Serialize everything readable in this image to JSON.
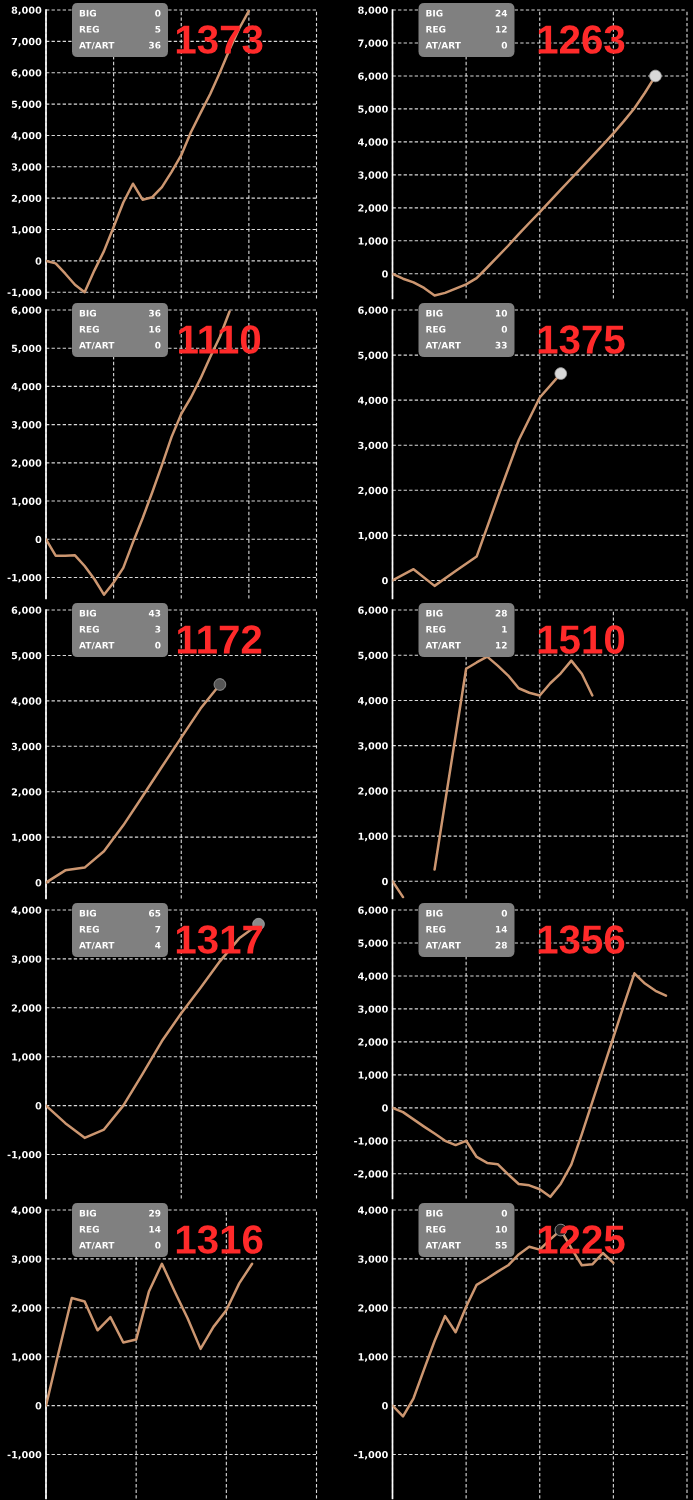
{
  "chart_data": [
    {
      "type": "line",
      "title": "1373",
      "annotations": [
        "BIG",
        "0",
        "REG",
        "5",
        "AT/ART",
        "36"
      ],
      "categories": [
        null,
        null,
        null,
        null,
        null,
        null,
        null,
        null,
        null,
        null,
        null,
        null,
        null,
        null,
        null,
        null,
        null,
        null,
        null,
        null,
        null,
        null,
        null,
        null,
        null,
        null,
        null,
        null,
        null
      ],
      "series": [
        {
          "color": "#cc9670",
          "values": [
            0,
            -80,
            -410,
            -760,
            -1000,
            -310,
            310,
            1080,
            1860,
            2460,
            1950,
            2030,
            2350,
            2840,
            3370,
            4100,
            4720,
            5320,
            6010,
            6740,
            7410,
            7970,
            null,
            null,
            null,
            null,
            null,
            null,
            null
          ]
        }
      ],
      "ylim": [
        -1200,
        8000
      ],
      "yticks": [
        {
          "value": -1000,
          "label": "-1,000"
        },
        0,
        {
          "value": 1000,
          "label": "1,000"
        },
        {
          "value": 2000,
          "label": "2,000"
        },
        {
          "value": 3000,
          "label": "3,000"
        },
        {
          "value": 4000,
          "label": "4,000"
        },
        {
          "value": 5000,
          "label": "5,000"
        },
        {
          "value": 6000,
          "label": "6,000"
        },
        {
          "value": 7000,
          "label": "7,000"
        },
        {
          "value": 8000,
          "label": "8,000"
        }
      ],
      "grid": true,
      "tick_labels": "y"
    },
    {
      "type": "line",
      "title": "1263",
      "annotations": [
        "BIG",
        "24",
        "REG",
        "12",
        "AT/ART",
        "0"
      ],
      "categories": [
        null,
        null,
        null,
        null,
        null,
        null,
        null,
        null,
        null,
        null,
        null,
        null,
        null,
        null,
        null,
        null,
        null,
        null,
        null,
        null,
        null,
        null,
        null,
        null,
        null,
        null,
        null,
        null,
        null
      ],
      "series": [
        {
          "color": "#cc9670",
          "values": [
            0,
            -150,
            -260,
            -430,
            -660,
            -580,
            -450,
            -320,
            -130,
            190,
            520,
            850,
            1200,
            1540,
            1870,
            2210,
            2550,
            2890,
            3230,
            3570,
            3910,
            4260,
            4630,
            5020,
            5490,
            6000,
            null,
            null,
            null
          ]
        },
        {
          "type": "scatter",
          "color": "#d8d8d8",
          "values": [
            null,
            null,
            null,
            null,
            null,
            null,
            null,
            null,
            null,
            null,
            null,
            null,
            null,
            null,
            null,
            null,
            null,
            null,
            null,
            null,
            null,
            null,
            null,
            null,
            null,
            6000,
            null,
            null,
            null
          ]
        }
      ],
      "ylim": [
        -750,
        8000
      ],
      "yticks": [
        0,
        {
          "value": 1000,
          "label": "1,000"
        },
        {
          "value": 2000,
          "label": "2,000"
        },
        {
          "value": 3000,
          "label": "3,000"
        },
        {
          "value": 4000,
          "label": "4,000"
        },
        {
          "value": 5000,
          "label": "5,000"
        },
        {
          "value": 6000,
          "label": "6,000"
        },
        {
          "value": 7000,
          "label": "7,000"
        },
        {
          "value": 8000,
          "label": "8,000"
        }
      ],
      "grid": true,
      "tick_labels": "y"
    },
    {
      "type": "line",
      "title": "1110",
      "annotations": [
        "BIG",
        "36",
        "REG",
        "16",
        "AT/ART",
        "0"
      ],
      "categories": [
        null,
        null,
        null,
        null,
        null,
        null,
        null,
        null,
        null,
        null,
        null,
        null,
        null,
        null,
        null,
        null,
        null,
        null,
        null,
        null,
        null,
        null,
        null,
        null,
        null,
        null,
        null,
        null,
        null
      ],
      "series": [
        {
          "color": "#cc9670",
          "values": [
            0,
            -430,
            -430,
            -420,
            -700,
            -1040,
            -1450,
            -1130,
            -750,
            -80,
            550,
            1230,
            1940,
            2680,
            3280,
            3710,
            4210,
            4770,
            5300,
            5960,
            null,
            null,
            null,
            null,
            null,
            null,
            null,
            null,
            null
          ]
        }
      ],
      "ylim": [
        -1550,
        6000
      ],
      "yticks": [
        {
          "value": -1000,
          "label": "-1,000"
        },
        0,
        {
          "value": 1000,
          "label": "1,000"
        },
        {
          "value": 2000,
          "label": "2,000"
        },
        {
          "value": 3000,
          "label": "3,000"
        },
        {
          "value": 4000,
          "label": "4,000"
        },
        {
          "value": 5000,
          "label": "5,000"
        },
        {
          "value": 6000,
          "label": "6,000"
        }
      ],
      "grid": true,
      "tick_labels": "y"
    },
    {
      "type": "line",
      "title": "1375",
      "annotations": [
        "BIG",
        "10",
        "REG",
        "0",
        "AT/ART",
        "33"
      ],
      "categories": [
        null,
        null,
        null,
        null,
        null,
        null,
        null,
        null,
        null,
        null,
        null,
        null,
        null,
        null,
        null
      ],
      "series": [
        {
          "color": "#cc9670",
          "values": [
            0,
            250,
            -120,
            210,
            530,
            1840,
            3110,
            4060,
            4590,
            null,
            null,
            null,
            null,
            null,
            null
          ]
        },
        {
          "type": "scatter",
          "color": "#d8d8d8",
          "values": [
            null,
            null,
            null,
            null,
            null,
            null,
            null,
            null,
            4590,
            null,
            null,
            null,
            null,
            null,
            null
          ]
        }
      ],
      "ylim": [
        -400,
        6000
      ],
      "yticks": [
        0,
        {
          "value": 1000,
          "label": "1,000"
        },
        {
          "value": 2000,
          "label": "2,000"
        },
        {
          "value": 3000,
          "label": "3,000"
        },
        {
          "value": 4000,
          "label": "4,000"
        },
        {
          "value": 5000,
          "label": "5,000"
        },
        {
          "value": 6000,
          "label": "6,000"
        }
      ],
      "grid": true,
      "tick_labels": "y"
    },
    {
      "type": "line",
      "title": "1172",
      "annotations": [
        "BIG",
        "43",
        "REG",
        "3",
        "AT/ART",
        "0"
      ],
      "categories": [
        null,
        null,
        null,
        null,
        null,
        null,
        null,
        null,
        null,
        null,
        null,
        null,
        null,
        null,
        null
      ],
      "series": [
        {
          "color": "#cc9670",
          "values": [
            0,
            270,
            330,
            690,
            1260,
            1900,
            2550,
            3190,
            3830,
            4360,
            null,
            null,
            null,
            null,
            null
          ]
        },
        {
          "type": "scatter",
          "color": "#555555",
          "values": [
            null,
            null,
            null,
            null,
            null,
            null,
            null,
            null,
            null,
            4360,
            null,
            null,
            null,
            null,
            null
          ]
        }
      ],
      "ylim": [
        -350,
        6000
      ],
      "yticks": [
        0,
        {
          "value": 1000,
          "label": "1,000"
        },
        {
          "value": 2000,
          "label": "2,000"
        },
        {
          "value": 3000,
          "label": "3,000"
        },
        {
          "value": 4000,
          "label": "4,000"
        },
        {
          "value": 5000,
          "label": "5,000"
        },
        {
          "value": 6000,
          "label": "6,000"
        }
      ],
      "grid": true,
      "tick_labels": "y"
    },
    {
      "type": "line",
      "title": "1510",
      "annotations": [
        "BIG",
        "28",
        "REG",
        "1",
        "AT/ART",
        "12"
      ],
      "categories": [
        null,
        null,
        null,
        null,
        null,
        null,
        null,
        null,
        null,
        null,
        null,
        null,
        null,
        null,
        null,
        null,
        null,
        null,
        null,
        null,
        null,
        null,
        null,
        null,
        null,
        null,
        null,
        null,
        null
      ],
      "series": [
        {
          "color": "#cc9670",
          "values": [
            0,
            -350,
            null,
            null,
            260,
            1750,
            3220,
            4700,
            4840,
            4970,
            4770,
            4550,
            4270,
            4170,
            4110,
            4380,
            4600,
            4880,
            4590,
            4110,
            null,
            null,
            null,
            null,
            null,
            null,
            null,
            null,
            null
          ]
        }
      ],
      "ylim": [
        -380,
        6000
      ],
      "yticks": [
        0,
        {
          "value": 1000,
          "label": "1,000"
        },
        {
          "value": 2000,
          "label": "2,000"
        },
        {
          "value": 3000,
          "label": "3,000"
        },
        {
          "value": 4000,
          "label": "4,000"
        },
        {
          "value": 5000,
          "label": "5,000"
        },
        {
          "value": 6000,
          "label": "6,000"
        }
      ],
      "grid": true,
      "tick_labels": "y"
    },
    {
      "type": "line",
      "title": "1317",
      "annotations": [
        "BIG",
        "65",
        "REG",
        "7",
        "AT/ART",
        "4"
      ],
      "categories": [
        null,
        null,
        null,
        null,
        null,
        null,
        null,
        null,
        null,
        null,
        null,
        null,
        null,
        null,
        null
      ],
      "series": [
        {
          "color": "#cc9670",
          "values": [
            0,
            -360,
            -660,
            -490,
            0,
            650,
            1320,
            1890,
            2410,
            2950,
            3420,
            3710,
            null,
            null,
            null
          ]
        },
        {
          "type": "scatter",
          "color": "#8a8a8a",
          "values": [
            null,
            null,
            null,
            null,
            null,
            null,
            null,
            null,
            null,
            null,
            null,
            3710,
            null,
            null,
            null
          ]
        }
      ],
      "ylim": [
        -1900,
        4000
      ],
      "yticks": [
        {
          "value": -1000,
          "label": "-1,000"
        },
        0,
        {
          "value": 1000,
          "label": "1,000"
        },
        {
          "value": 2000,
          "label": "2,000"
        },
        {
          "value": 3000,
          "label": "3,000"
        },
        {
          "value": 4000,
          "label": "4,000"
        }
      ],
      "grid": true,
      "tick_labels": "y"
    },
    {
      "type": "line",
      "title": "1356",
      "annotations": [
        "BIG",
        "0",
        "REG",
        "14",
        "AT/ART",
        "28"
      ],
      "categories": [
        null,
        null,
        null,
        null,
        null,
        null,
        null,
        null,
        null,
        null,
        null,
        null,
        null,
        null,
        null,
        null,
        null,
        null,
        null,
        null,
        null,
        null,
        null,
        null,
        null,
        null,
        null,
        null,
        null
      ],
      "series": [
        {
          "color": "#cc9670",
          "values": [
            0,
            -130,
            -350,
            -570,
            -780,
            -1000,
            -1130,
            -1000,
            -1490,
            -1670,
            -1710,
            -2020,
            -2310,
            -2350,
            -2470,
            -2700,
            -2300,
            -1720,
            -800,
            180,
            1160,
            2140,
            3120,
            4080,
            3770,
            3550,
            3400,
            null,
            null
          ]
        }
      ],
      "ylim": [
        -2750,
        6000
      ],
      "yticks": [
        {
          "value": -2000,
          "label": "-2,000"
        },
        {
          "value": -1000,
          "label": "-1,000"
        },
        0,
        {
          "value": 1000,
          "label": "1,000"
        },
        {
          "value": 2000,
          "label": "2,000"
        },
        {
          "value": 3000,
          "label": "3,000"
        },
        {
          "value": 4000,
          "label": "4,000"
        },
        {
          "value": 5000,
          "label": "5,000"
        },
        {
          "value": 6000,
          "label": "6,000"
        }
      ],
      "grid": true,
      "tick_labels": "y"
    },
    {
      "type": "line",
      "title": "1316",
      "annotations": [
        "BIG",
        "29",
        "REG",
        "14",
        "AT/ART",
        "0"
      ],
      "categories": [
        null,
        null,
        null,
        null,
        null,
        null,
        null,
        null,
        null,
        null,
        null,
        null,
        null,
        null,
        null,
        null,
        null,
        null,
        null,
        null,
        null,
        null
      ],
      "series": [
        {
          "color": "#cc9670",
          "values": [
            0,
            1110,
            2200,
            2130,
            1540,
            1810,
            1290,
            1350,
            2340,
            2900,
            2330,
            1780,
            1160,
            1610,
            1950,
            2500,
            2900,
            null,
            null,
            null,
            null,
            null
          ]
        }
      ],
      "ylim": [
        -1900,
        4000
      ],
      "yticks": [
        {
          "value": -1000,
          "label": "-1,000"
        },
        0,
        {
          "value": 1000,
          "label": "1,000"
        },
        {
          "value": 2000,
          "label": "2,000"
        },
        {
          "value": 3000,
          "label": "3,000"
        },
        {
          "value": 4000,
          "label": "4,000"
        }
      ],
      "grid": true,
      "tick_labels": "y"
    },
    {
      "type": "line",
      "title": "1225",
      "annotations": [
        "BIG",
        "0",
        "REG",
        "10",
        "AT/ART",
        "55"
      ],
      "categories": [
        null,
        null,
        null,
        null,
        null,
        null,
        null,
        null,
        null,
        null,
        null,
        null,
        null,
        null,
        null,
        null,
        null,
        null,
        null,
        null,
        null,
        null,
        null,
        null,
        null,
        null,
        null,
        null,
        null
      ],
      "series": [
        {
          "color": "#cc9670",
          "values": [
            0,
            -220,
            150,
            740,
            1320,
            1830,
            1500,
            2020,
            2470,
            2600,
            2740,
            2870,
            3090,
            3250,
            3190,
            3400,
            3590,
            3220,
            2870,
            2890,
            3120,
            2920,
            null,
            null,
            null,
            null,
            null,
            null,
            null
          ]
        },
        {
          "type": "scatter",
          "color": "#202020",
          "values": [
            null,
            null,
            null,
            null,
            null,
            null,
            null,
            null,
            null,
            null,
            null,
            null,
            null,
            null,
            null,
            null,
            3590,
            null,
            null,
            null,
            null,
            null,
            null,
            null,
            null,
            null,
            null,
            null,
            null
          ]
        }
      ],
      "ylim": [
        -1900,
        4000
      ],
      "yticks": [
        {
          "value": -1000,
          "label": "-1,000"
        },
        0,
        {
          "value": 1000,
          "label": "1,000"
        },
        {
          "value": 2000,
          "label": "2,000"
        },
        {
          "value": 3000,
          "label": "3,000"
        },
        {
          "value": 4000,
          "label": "4,000"
        }
      ],
      "grid": true,
      "tick_labels": "y"
    }
  ]
}
